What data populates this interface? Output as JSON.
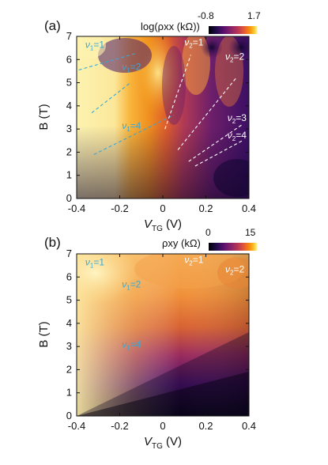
{
  "chart_data": [
    {
      "type": "heatmap",
      "panel_label": "(a)",
      "xlabel_main": "V",
      "xlabel_sub": "TG",
      "xlabel_unit": " (V)",
      "ylabel": "B (T)",
      "xlim": [
        -0.4,
        0.4
      ],
      "ylim": [
        0,
        7
      ],
      "x_ticks": [
        "-0.4",
        "-0.2",
        "0",
        "0.2",
        "0.4"
      ],
      "y_ticks": [
        "0",
        "1",
        "2",
        "3",
        "4",
        "5",
        "6",
        "7"
      ],
      "colorbar": {
        "title": "log(ρxx (kΩ))",
        "min_label": "-0.8",
        "max_label": "1.7",
        "min": -0.8,
        "max": 1.7
      },
      "annotations": [
        {
          "text": "ν1=1",
          "color": "cyan",
          "x": -0.36,
          "y": 6.5
        },
        {
          "text": "ν1=2",
          "color": "cyan",
          "x": -0.19,
          "y": 5.55
        },
        {
          "text": "ν1=4",
          "color": "cyan",
          "x": -0.19,
          "y": 3.0
        },
        {
          "text": "ν2=1",
          "color": "white",
          "x": 0.1,
          "y": 6.6
        },
        {
          "text": "ν2=2",
          "color": "white",
          "x": 0.29,
          "y": 6.0
        },
        {
          "text": "ν2=3",
          "color": "white",
          "x": 0.3,
          "y": 3.35
        },
        {
          "text": "ν2=4",
          "color": "white",
          "x": 0.3,
          "y": 2.6
        }
      ],
      "fan_lines": [
        {
          "color": "cyan",
          "points": [
            [
              -0.39,
              5.55
            ],
            [
              -0.13,
              6.25
            ]
          ]
        },
        {
          "color": "cyan",
          "points": [
            [
              -0.33,
              3.7
            ],
            [
              -0.15,
              5.0
            ]
          ]
        },
        {
          "color": "cyan",
          "points": [
            [
              -0.32,
              1.9
            ],
            [
              0.05,
              3.6
            ]
          ]
        },
        {
          "color": "white",
          "points": [
            [
              0.01,
              3.0
            ],
            [
              0.13,
              6.2
            ]
          ]
        },
        {
          "color": "white",
          "points": [
            [
              0.07,
              2.1
            ],
            [
              0.34,
              5.2
            ]
          ]
        },
        {
          "color": "white",
          "points": [
            [
              0.12,
              1.6
            ],
            [
              0.37,
              3.2
            ]
          ]
        },
        {
          "color": "white",
          "points": [
            [
              0.15,
              1.4
            ],
            [
              0.37,
              2.5
            ]
          ]
        }
      ]
    },
    {
      "type": "heatmap",
      "panel_label": "(b)",
      "xlabel_main": "V",
      "xlabel_sub": "TG",
      "xlabel_unit": " (V)",
      "ylabel": "B (T)",
      "xlim": [
        -0.4,
        0.4
      ],
      "ylim": [
        0,
        7
      ],
      "x_ticks": [
        "-0.4",
        "-0.2",
        "0",
        "0.2",
        "0.4"
      ],
      "y_ticks": [
        "0",
        "1",
        "2",
        "3",
        "4",
        "5",
        "6",
        "7"
      ],
      "colorbar": {
        "title": "ρxy (kΩ)",
        "min_label": "0",
        "max_label": "15",
        "min": 0,
        "max": 15
      },
      "annotations": [
        {
          "text": "ν1=1",
          "color": "cyan",
          "x": -0.36,
          "y": 6.5
        },
        {
          "text": "ν1=2",
          "color": "cyan",
          "x": -0.19,
          "y": 5.55
        },
        {
          "text": "ν1=4",
          "color": "cyan",
          "x": -0.19,
          "y": 2.95
        },
        {
          "text": "ν2=1",
          "color": "white",
          "x": 0.1,
          "y": 6.6
        },
        {
          "text": "ν2=2",
          "color": "white",
          "x": 0.29,
          "y": 6.2
        }
      ]
    }
  ],
  "colors": {
    "cyan": "#36a8d8",
    "white": "#ffffff"
  }
}
